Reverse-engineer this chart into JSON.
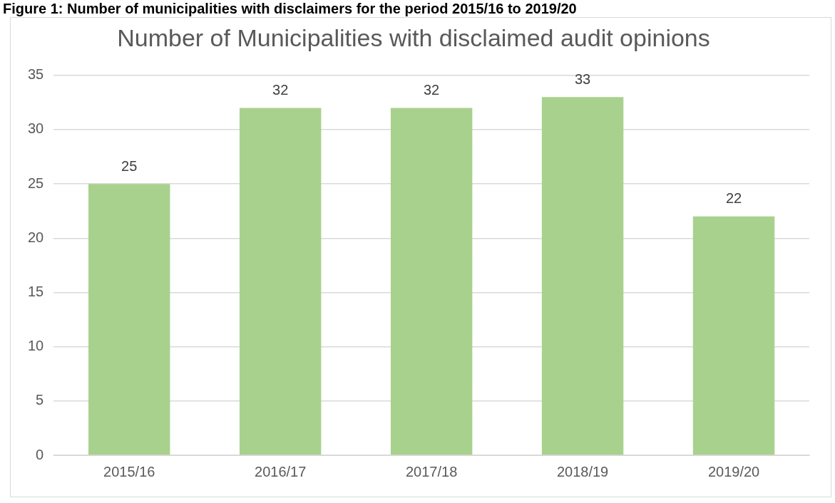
{
  "chart_data": {
    "type": "bar",
    "title": "Number of Municipalities with disclaimed audit opinions",
    "annotations": [
      "Figure 1: Number of municipalities with disclaimers for the period 2015/16 to 2019/20"
    ],
    "categories": [
      "2015/16",
      "2016/17",
      "2017/18",
      "2018/19",
      "2019/20"
    ],
    "values": [
      25,
      32,
      32,
      33,
      22
    ],
    "color": "#a9d18e",
    "ylim": [
      0,
      35
    ],
    "yticks": [
      0,
      5,
      10,
      15,
      20,
      25,
      30,
      35
    ],
    "grid": "y",
    "data_labels": true,
    "legend": false
  }
}
